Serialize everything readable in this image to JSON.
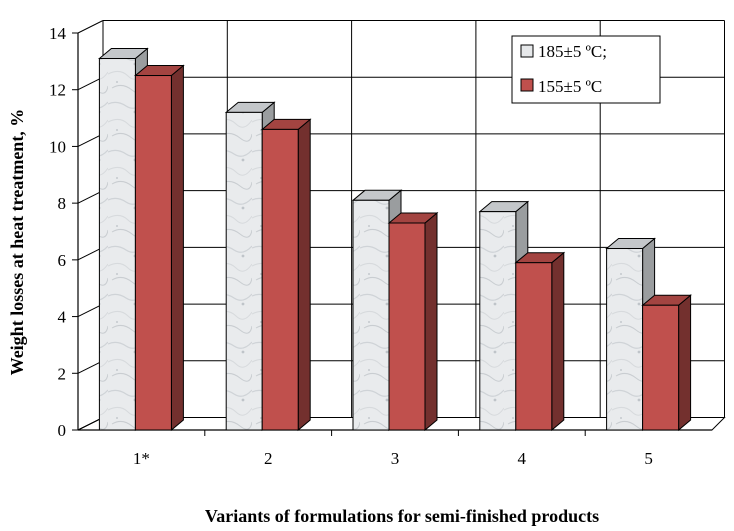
{
  "chart_data": {
    "type": "bar",
    "categories": [
      "1*",
      "2",
      "3",
      "4",
      "5"
    ],
    "series": [
      {
        "name": "185±5 ºC;",
        "values": [
          13.1,
          11.2,
          8.1,
          7.7,
          6.4
        ],
        "color": "#e6e8ea"
      },
      {
        "name": "155±5 ºC",
        "values": [
          12.5,
          10.6,
          7.3,
          5.9,
          4.4
        ],
        "color": "#c0504d"
      }
    ],
    "title": "",
    "xlabel": "Variants of formulations for semi-finished products",
    "ylabel": "Weight losses at heat treatment, %",
    "ylim": [
      0,
      14
    ],
    "yticks": [
      0,
      2,
      4,
      6,
      8,
      10,
      12,
      14
    ],
    "grid": true,
    "legend_position": "top-right"
  }
}
